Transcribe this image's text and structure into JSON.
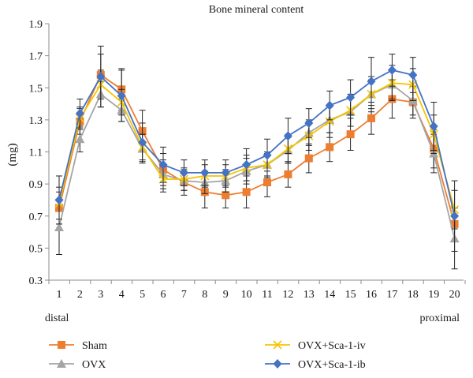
{
  "chart_data": {
    "type": "line",
    "title": "Bone mineral content",
    "ylabel": "(mg)",
    "xlabel": "",
    "x": [
      "1",
      "2",
      "3",
      "4",
      "5",
      "6",
      "7",
      "8",
      "9",
      "10",
      "11",
      "12",
      "13",
      "14",
      "15",
      "16",
      "17",
      "18",
      "19",
      "20"
    ],
    "x_end_labels": {
      "left": "distal",
      "right": "proximal"
    },
    "ylim": [
      0.3,
      1.9
    ],
    "yticks": [
      "0.3",
      "0.5",
      "0.7",
      "0.9",
      "1.1",
      "1.3",
      "1.5",
      "1.7",
      "1.9"
    ],
    "grid": false,
    "legend_position": "bottom",
    "error_bars": true,
    "series": [
      {
        "name": "Sham",
        "color": "#ED7D31",
        "marker": "square",
        "values": [
          0.75,
          1.29,
          1.58,
          1.49,
          1.23,
          0.99,
          0.91,
          0.85,
          0.83,
          0.85,
          0.91,
          0.96,
          1.06,
          1.13,
          1.21,
          1.31,
          1.43,
          1.41,
          1.12,
          0.65
        ],
        "errors": [
          0.1,
          0.08,
          0.13,
          0.13,
          0.13,
          0.1,
          0.08,
          0.1,
          0.08,
          0.1,
          0.09,
          0.08,
          0.09,
          0.09,
          0.1,
          0.1,
          0.12,
          0.1,
          0.12,
          0.1
        ]
      },
      {
        "name": "OVX",
        "color": "#A5A5A5",
        "marker": "triangle",
        "values": [
          0.63,
          1.18,
          1.46,
          1.36,
          1.12,
          0.96,
          0.92,
          0.91,
          0.92,
          0.98,
          1.02,
          1.11,
          1.22,
          1.3,
          1.35,
          1.46,
          1.52,
          1.42,
          1.09,
          0.56
        ],
        "errors": [
          0.17,
          0.08,
          0.08,
          0.07,
          0.09,
          0.09,
          0.06,
          0.07,
          0.07,
          0.08,
          0.07,
          0.08,
          0.08,
          0.08,
          0.09,
          0.09,
          0.09,
          0.09,
          0.12,
          0.19
        ]
      },
      {
        "name": "OVX+Sca-1-iv",
        "color": "#F5C400",
        "marker": "x",
        "values": [
          0.78,
          1.31,
          1.52,
          1.41,
          1.13,
          0.93,
          0.93,
          0.95,
          0.95,
          1.0,
          1.02,
          1.12,
          1.2,
          1.29,
          1.36,
          1.46,
          1.53,
          1.52,
          1.21,
          0.74
        ],
        "errors": [
          0.1,
          0.07,
          0.09,
          0.08,
          0.08,
          0.08,
          0.07,
          0.07,
          0.07,
          0.08,
          0.08,
          0.09,
          0.09,
          0.1,
          0.1,
          0.11,
          0.11,
          0.1,
          0.12,
          0.12
        ]
      },
      {
        "name": "OVX+Sca-1-ib",
        "color": "#4472C4",
        "marker": "diamond",
        "values": [
          0.8,
          1.34,
          1.57,
          1.45,
          1.16,
          1.02,
          0.97,
          0.97,
          0.97,
          1.02,
          1.08,
          1.2,
          1.28,
          1.39,
          1.44,
          1.54,
          1.61,
          1.58,
          1.26,
          0.7
        ],
        "errors": [
          0.15,
          0.09,
          0.19,
          0.16,
          0.12,
          0.11,
          0.08,
          0.08,
          0.08,
          0.1,
          0.1,
          0.11,
          0.09,
          0.09,
          0.11,
          0.15,
          0.1,
          0.11,
          0.15,
          0.22
        ]
      }
    ]
  }
}
